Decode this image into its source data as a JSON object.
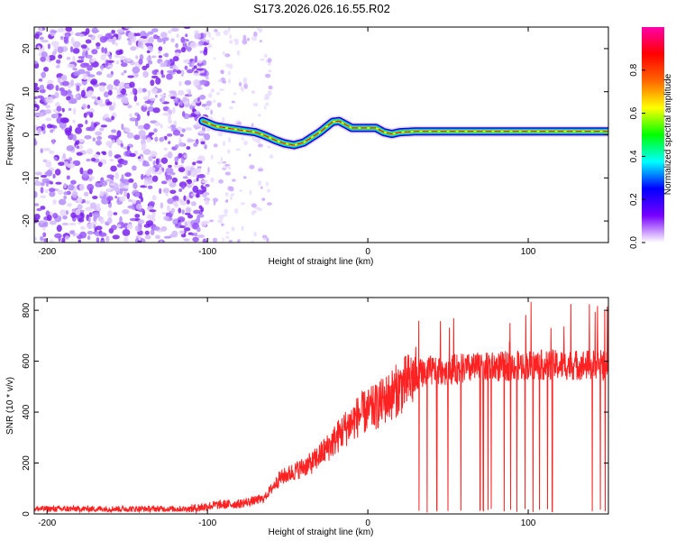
{
  "title": "S173.2026.026.16.55.R02",
  "chart_data": [
    {
      "type": "heatmap",
      "name": "spectrogram",
      "xlabel": "Height of straight line (km)",
      "ylabel": "Frequency (Hz)",
      "xlim": [
        -208,
        150
      ],
      "ylim": [
        -25,
        25
      ],
      "xticks": [
        -200,
        -100,
        0,
        100
      ],
      "yticks": [
        -20,
        -10,
        0,
        10,
        20
      ],
      "xtick_labels": [
        "-200",
        "-100",
        "0",
        "100"
      ],
      "ytick_labels": [
        "-20",
        "-10",
        "0",
        "10",
        "20"
      ],
      "noise_region_km": [
        -208,
        -100
      ],
      "ridge": {
        "x": [
          -103,
          -95,
          -85,
          -78,
          -70,
          -64,
          -58,
          -52,
          -46,
          -40,
          -35,
          -30,
          -26,
          -22,
          -18,
          -14,
          -10,
          -5,
          0,
          5,
          10,
          15,
          20,
          30,
          40,
          60,
          80,
          100,
          120,
          140,
          150
        ],
        "y": [
          3.2,
          2.0,
          1.4,
          1.0,
          0.6,
          -0.2,
          -1.2,
          -2.0,
          -2.4,
          -1.8,
          -0.6,
          0.6,
          1.8,
          3.0,
          3.2,
          2.4,
          1.6,
          1.6,
          1.6,
          1.6,
          0.6,
          0.2,
          0.6,
          0.8,
          0.8,
          0.8,
          0.8,
          0.8,
          0.8,
          0.8,
          0.8
        ]
      },
      "colorbar": {
        "label": "Normalized spectral amplitude",
        "range": [
          0,
          1
        ],
        "ticks": [
          0.0,
          0.2,
          0.4,
          0.6,
          0.8
        ],
        "tick_labels": [
          "0.0",
          "0.2",
          "0.4",
          "0.6",
          "0.8"
        ],
        "colors": [
          "#ffffff",
          "#7700ff",
          "#0000ff",
          "#00ffff",
          "#00ff00",
          "#ffff00",
          "#ff6600",
          "#ff0000",
          "#ff00aa"
        ]
      }
    },
    {
      "type": "line",
      "name": "snr",
      "xlabel": "Height of straight line (km)",
      "ylabel": "SNR (10 * v/v)",
      "xlim": [
        -208,
        150
      ],
      "ylim": [
        0,
        850
      ],
      "xticks": [
        -200,
        -100,
        0,
        100
      ],
      "yticks": [
        0,
        200,
        400,
        600,
        800
      ],
      "xtick_labels": [
        "-200",
        "-100",
        "0",
        "100"
      ],
      "ytick_labels": [
        "0",
        "200",
        "400",
        "600",
        "800"
      ],
      "color": "#ff2222",
      "trend": {
        "x": [
          -208,
          -110,
          -95,
          -80,
          -65,
          -55,
          -45,
          -35,
          -25,
          -15,
          -5,
          5,
          15,
          25,
          35,
          60,
          100,
          150
        ],
        "y": [
          20,
          20,
          35,
          40,
          60,
          140,
          170,
          200,
          260,
          330,
          390,
          420,
          470,
          520,
          560,
          570,
          585,
          585
        ]
      },
      "dropouts_km": [
        32,
        37,
        43,
        50,
        58,
        70,
        72,
        75,
        77,
        85,
        89,
        93,
        98,
        103,
        107,
        112,
        115,
        140,
        145,
        148
      ]
    }
  ]
}
